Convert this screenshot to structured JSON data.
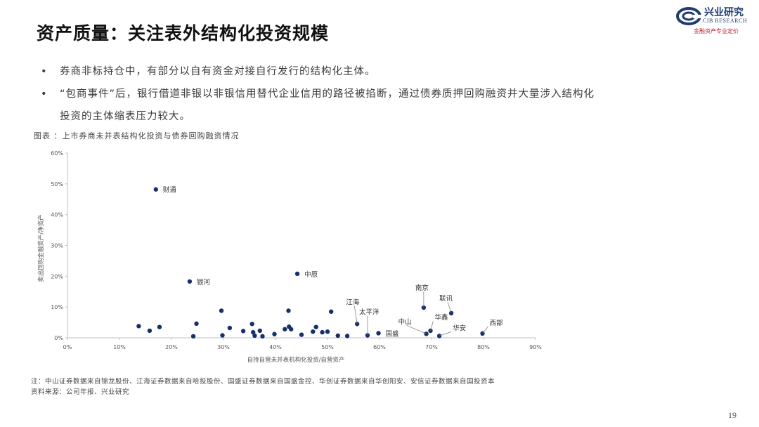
{
  "title": "资产质量：关注表外结构化投资规模",
  "logo": {
    "name": "兴业研究",
    "english": "CIB RESEARCH",
    "slogan": "金融资产专业定价",
    "brand_color": "#1f3b73",
    "slogan_color": "#c0262d"
  },
  "bullets": [
    {
      "marker": "•",
      "text": "券商非标持仓中，有部分以自有资金对接自行发行的结构化主体。"
    },
    {
      "marker": "•",
      "text": "“包商事件”后，银行借道非银以非银信用替代企业信用的路径被掐断，通过债券质押回购融资并大量涉入结构化"
    },
    {
      "marker": "",
      "text": "投资的主体缩表压力较大。"
    }
  ],
  "chart_caption": "图表 ：上市券商未并表结构化投资与债券回购融资情况",
  "chart_data": {
    "type": "scatter",
    "xlabel": "自持自营未并表机构化投资/自营资产",
    "ylabel": "卖出回购金融资产/净资产",
    "xlim": [
      0,
      0.9
    ],
    "ylim": [
      0,
      0.6
    ],
    "xticks": [
      "0%",
      "10%",
      "20%",
      "30%",
      "40%",
      "50%",
      "60%",
      "70%",
      "80%",
      "90%"
    ],
    "yticks": [
      "0%",
      "10%",
      "20%",
      "30%",
      "40%",
      "50%",
      "60%"
    ],
    "grid": false,
    "marker_color": "#17306b",
    "points": [
      {
        "x": 0.17,
        "y": 0.482,
        "label": "财通"
      },
      {
        "x": 0.235,
        "y": 0.183,
        "label": "银河"
      },
      {
        "x": 0.442,
        "y": 0.208,
        "label": "中原"
      },
      {
        "x": 0.557,
        "y": 0.045,
        "label": "江海"
      },
      {
        "x": 0.577,
        "y": 0.008,
        "label": "太平洋"
      },
      {
        "x": 0.598,
        "y": 0.015,
        "label": "国盛"
      },
      {
        "x": 0.685,
        "y": 0.098,
        "label": "南京"
      },
      {
        "x": 0.69,
        "y": 0.013,
        "label": "中山"
      },
      {
        "x": 0.698,
        "y": 0.023,
        "label": "华鑫"
      },
      {
        "x": 0.738,
        "y": 0.08,
        "label": "联讯"
      },
      {
        "x": 0.715,
        "y": 0.006,
        "label": "华安"
      },
      {
        "x": 0.798,
        "y": 0.014,
        "label": "西部"
      },
      {
        "x": 0.137,
        "y": 0.038,
        "label": ""
      },
      {
        "x": 0.158,
        "y": 0.023,
        "label": ""
      },
      {
        "x": 0.177,
        "y": 0.035,
        "label": ""
      },
      {
        "x": 0.242,
        "y": 0.005,
        "label": ""
      },
      {
        "x": 0.248,
        "y": 0.046,
        "label": ""
      },
      {
        "x": 0.296,
        "y": 0.088,
        "label": ""
      },
      {
        "x": 0.298,
        "y": 0.008,
        "label": ""
      },
      {
        "x": 0.312,
        "y": 0.032,
        "label": ""
      },
      {
        "x": 0.338,
        "y": 0.022,
        "label": ""
      },
      {
        "x": 0.355,
        "y": 0.045,
        "label": ""
      },
      {
        "x": 0.357,
        "y": 0.018,
        "label": ""
      },
      {
        "x": 0.36,
        "y": 0.007,
        "label": ""
      },
      {
        "x": 0.37,
        "y": 0.023,
        "label": ""
      },
      {
        "x": 0.375,
        "y": 0.005,
        "label": ""
      },
      {
        "x": 0.398,
        "y": 0.012,
        "label": ""
      },
      {
        "x": 0.418,
        "y": 0.028,
        "label": ""
      },
      {
        "x": 0.425,
        "y": 0.088,
        "label": ""
      },
      {
        "x": 0.426,
        "y": 0.036,
        "label": ""
      },
      {
        "x": 0.43,
        "y": 0.028,
        "label": ""
      },
      {
        "x": 0.45,
        "y": 0.01,
        "label": ""
      },
      {
        "x": 0.472,
        "y": 0.02,
        "label": ""
      },
      {
        "x": 0.478,
        "y": 0.035,
        "label": ""
      },
      {
        "x": 0.49,
        "y": 0.018,
        "label": ""
      },
      {
        "x": 0.5,
        "y": 0.02,
        "label": ""
      },
      {
        "x": 0.507,
        "y": 0.085,
        "label": ""
      },
      {
        "x": 0.52,
        "y": 0.007,
        "label": ""
      },
      {
        "x": 0.538,
        "y": 0.006,
        "label": ""
      }
    ]
  },
  "notes": {
    "line1": "注：中山证券数据来自锦龙股份、江海证券数据来自哈投股份、国盛证券数据来自国盛金控、华创证券数据来自华创阳安、安信证券数据来自国投资本",
    "line2": "资料来源：公司年报、兴业研究"
  },
  "page_number": "19"
}
